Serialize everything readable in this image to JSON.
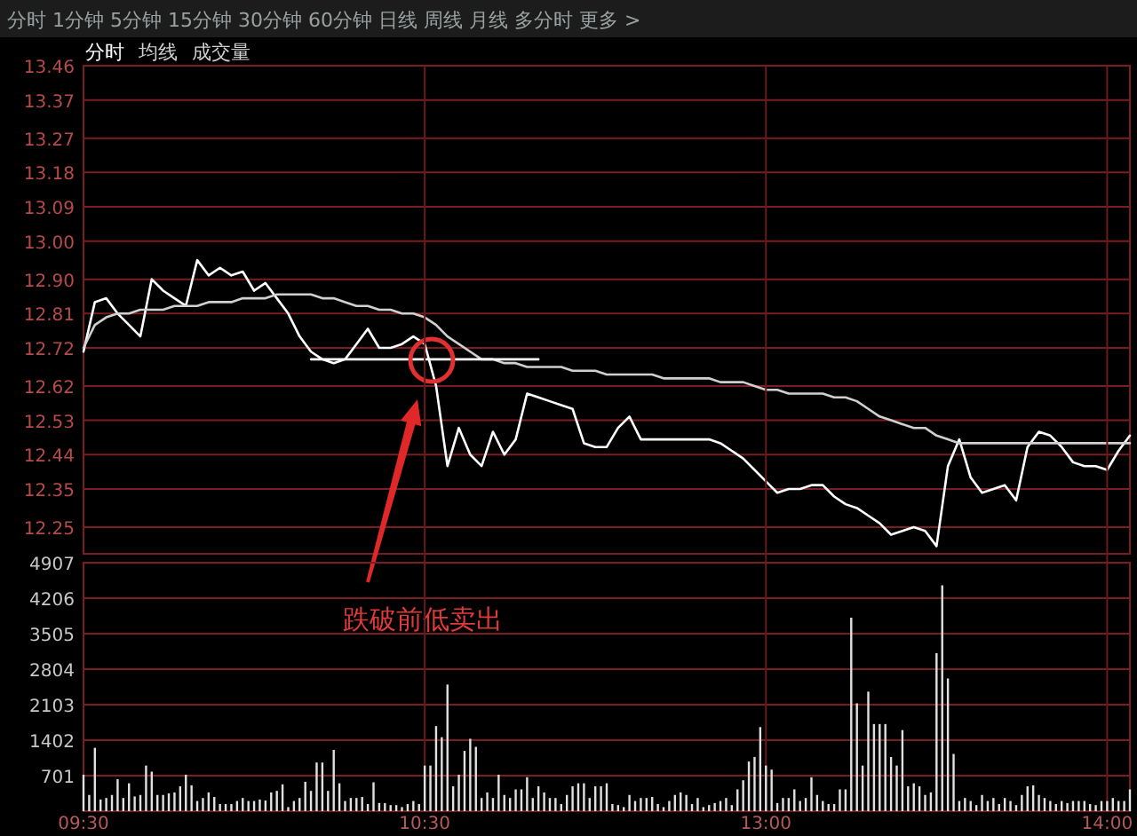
{
  "chart_data": [
    {
      "type": "line",
      "legend": "top left",
      "grid": true,
      "tick_labels": "y",
      "ylim": [
        12.18,
        13.46
      ],
      "yticks": [
        13.46,
        13.37,
        13.27,
        13.18,
        13.09,
        {
          "value": 13.0,
          "label": "13.00"
        },
        {
          "value": 12.9,
          "label": "12.90"
        },
        12.81,
        12.72,
        12.62,
        12.53,
        12.44,
        12.35,
        12.25
      ],
      "categories": [
        null,
        null,
        null,
        null,
        null,
        null,
        null,
        null,
        null,
        null,
        null,
        null,
        null,
        null,
        null,
        null,
        null,
        null,
        null,
        null,
        null,
        null,
        null,
        null,
        null,
        null,
        null,
        null,
        null,
        null,
        null,
        null,
        null,
        null,
        null,
        null,
        null,
        null,
        null,
        null,
        null,
        null,
        null,
        null,
        null,
        null,
        null,
        null,
        null,
        null,
        null,
        null,
        null,
        null,
        null,
        null,
        null,
        null,
        null,
        null,
        null,
        null,
        null,
        null,
        null,
        null,
        null,
        null,
        null,
        null,
        null,
        null,
        null,
        null,
        null,
        null,
        null,
        null,
        null,
        null,
        null,
        null,
        null,
        null,
        null,
        null,
        null,
        null,
        null,
        null,
        null,
        null,
        null
      ],
      "annotations": [
        "分时 1分钟 5分钟 15分钟 30分钟 60分钟 日线 周线 月线 多分时 更多 >",
        "成交量",
        "跌破前低卖出"
      ],
      "series": [
        {
          "name": "分时",
          "color": "#ffffff",
          "values": [
            12.71,
            12.84,
            12.85,
            12.81,
            12.78,
            12.75,
            12.9,
            12.87,
            12.85,
            12.83,
            12.95,
            12.91,
            12.93,
            12.91,
            12.92,
            12.87,
            12.89,
            12.85,
            12.81,
            12.75,
            12.71,
            12.69,
            12.68,
            12.69,
            12.73,
            12.77,
            12.72,
            12.72,
            12.73,
            12.75,
            12.73,
            12.62,
            12.41,
            12.51,
            12.44,
            12.41,
            12.5,
            12.44,
            12.48,
            12.6,
            12.59,
            12.58,
            12.57,
            12.56,
            12.47,
            12.46,
            12.46,
            12.51,
            12.54,
            12.48,
            12.48,
            12.48,
            12.48,
            12.48,
            12.48,
            12.48,
            12.47,
            12.45,
            12.43,
            12.4,
            12.37,
            12.34,
            12.35,
            12.35,
            12.36,
            12.36,
            12.33,
            12.31,
            12.3,
            12.28,
            12.26,
            12.23,
            12.24,
            12.25,
            12.24,
            12.2,
            12.41,
            12.48,
            12.38,
            12.34,
            12.35,
            12.36,
            12.32,
            12.46,
            12.5,
            12.49,
            12.46,
            12.42,
            12.41,
            12.41,
            12.4,
            12.45,
            12.49
          ]
        },
        {
          "name": "均线",
          "color": "#d0d0d0",
          "values": [
            12.72,
            12.78,
            12.8,
            12.81,
            12.81,
            12.82,
            12.82,
            12.82,
            12.83,
            12.83,
            12.83,
            12.84,
            12.84,
            12.84,
            12.85,
            12.85,
            12.85,
            12.86,
            12.86,
            12.86,
            12.86,
            12.85,
            12.85,
            12.84,
            12.83,
            12.83,
            12.82,
            12.82,
            12.81,
            12.81,
            12.8,
            12.78,
            12.75,
            12.73,
            12.71,
            12.69,
            12.69,
            12.68,
            12.68,
            12.67,
            12.67,
            12.67,
            12.67,
            12.66,
            12.66,
            12.66,
            12.65,
            12.65,
            12.65,
            12.65,
            12.65,
            12.64,
            12.64,
            12.64,
            12.64,
            12.64,
            12.63,
            12.63,
            12.63,
            12.62,
            12.61,
            12.61,
            12.6,
            12.6,
            12.6,
            12.6,
            12.59,
            12.59,
            12.58,
            12.56,
            12.54,
            12.53,
            12.52,
            12.51,
            12.51,
            12.49,
            12.48,
            12.47,
            12.47,
            12.47,
            12.47,
            12.47,
            12.47,
            12.47,
            12.47,
            12.47,
            12.47,
            12.47,
            12.47,
            12.47,
            12.47,
            12.47,
            12.47
          ]
        },
        {
          "color": "#ffffff",
          "values": [
            null,
            null,
            null,
            null,
            null,
            null,
            null,
            null,
            null,
            null,
            null,
            null,
            null,
            null,
            null,
            null,
            null,
            null,
            null,
            null,
            12.69,
            12.69,
            12.69,
            12.69,
            12.69,
            12.69,
            12.69,
            12.69,
            12.69,
            12.69,
            12.69,
            12.69,
            12.69,
            12.69,
            12.69,
            12.69,
            12.69,
            12.69,
            12.69,
            12.69,
            12.69,
            null,
            null,
            null,
            null,
            null,
            null,
            null,
            null,
            null,
            null,
            null,
            null,
            null,
            null,
            null,
            null,
            null,
            null,
            null,
            null,
            null,
            null,
            null,
            null,
            null,
            null,
            null,
            null,
            null,
            null,
            null,
            null,
            null,
            null,
            null,
            null,
            null,
            null,
            null,
            null,
            null,
            null,
            null,
            null,
            null,
            null,
            null,
            null,
            null,
            null,
            null,
            null
          ]
        }
      ]
    },
    {
      "type": "bar",
      "grid": true,
      "color": "#e0e0e0",
      "ylim": [
        0,
        4907
      ],
      "yticks": [
        701,
        1402,
        2103,
        2804,
        3505,
        4206,
        4907
      ],
      "categories": [
        "09:30",
        null,
        null,
        null,
        null,
        null,
        null,
        null,
        null,
        null,
        null,
        null,
        null,
        null,
        null,
        null,
        null,
        null,
        null,
        null,
        null,
        null,
        null,
        null,
        null,
        null,
        null,
        null,
        null,
        null,
        null,
        null,
        null,
        null,
        null,
        null,
        null,
        null,
        null,
        null,
        null,
        null,
        null,
        null,
        null,
        null,
        null,
        null,
        null,
        null,
        null,
        null,
        null,
        null,
        null,
        null,
        null,
        null,
        null,
        null,
        "10:30",
        null,
        null,
        null,
        null,
        null,
        null,
        null,
        null,
        null,
        null,
        null,
        null,
        null,
        null,
        null,
        null,
        null,
        null,
        null,
        null,
        null,
        null,
        null,
        null,
        null,
        null,
        null,
        null,
        null,
        null,
        null,
        null,
        null,
        null,
        null,
        null,
        null,
        null,
        null,
        null,
        null,
        null,
        null,
        null,
        null,
        null,
        null,
        null,
        null,
        null,
        null,
        null,
        null,
        null,
        null,
        null,
        null,
        null,
        null,
        "13:00",
        null,
        null,
        null,
        null,
        null,
        null,
        null,
        null,
        null,
        null,
        null,
        null,
        null,
        null,
        null,
        null,
        null,
        null,
        null,
        null,
        null,
        null,
        null,
        null,
        null,
        null,
        null,
        null,
        null,
        null,
        null,
        null,
        null,
        null,
        null,
        null,
        null,
        null,
        null,
        null,
        null,
        null,
        null,
        null,
        null,
        null,
        null,
        null,
        null,
        null,
        null,
        null,
        null,
        null,
        null,
        null,
        null,
        null,
        null,
        "14:00",
        null,
        null,
        null,
        null
      ],
      "values": [
        720,
        320,
        1250,
        230,
        260,
        320,
        630,
        260,
        550,
        290,
        320,
        900,
        780,
        320,
        320,
        350,
        370,
        490,
        720,
        510,
        200,
        260,
        370,
        280,
        140,
        140,
        140,
        200,
        260,
        200,
        200,
        230,
        210,
        370,
        400,
        530,
        80,
        200,
        260,
        580,
        400,
        960,
        960,
        400,
        1210,
        550,
        200,
        260,
        260,
        280,
        140,
        570,
        160,
        160,
        120,
        120,
        80,
        140,
        200,
        140,
        900,
        900,
        1680,
        1460,
        2500,
        490,
        720,
        1190,
        1430,
        1270,
        260,
        370,
        260,
        720,
        320,
        260,
        430,
        430,
        670,
        260,
        490,
        370,
        260,
        260,
        140,
        320,
        490,
        550,
        550,
        260,
        490,
        490,
        550,
        140,
        120,
        80,
        320,
        200,
        260,
        260,
        280,
        140,
        80,
        200,
        320,
        370,
        320,
        140,
        260,
        80,
        120,
        160,
        200,
        260,
        120,
        430,
        610,
        980,
        1070,
        1660,
        900,
        820,
        160,
        260,
        260,
        430,
        200,
        260,
        670,
        320,
        200,
        140,
        140,
        430,
        430,
        3820,
        2130,
        900,
        2360,
        1720,
        1720,
        1720,
        1070,
        900,
        1600,
        490,
        550,
        490,
        320,
        370,
        3120,
        4460,
        2620,
        1130,
        200,
        260,
        200,
        120,
        320,
        200,
        260,
        140,
        260,
        200,
        120,
        320,
        490,
        510,
        320,
        260,
        200,
        140,
        200,
        160,
        200,
        200,
        200,
        140,
        120,
        200,
        200,
        260,
        200,
        200,
        430
      ]
    }
  ]
}
